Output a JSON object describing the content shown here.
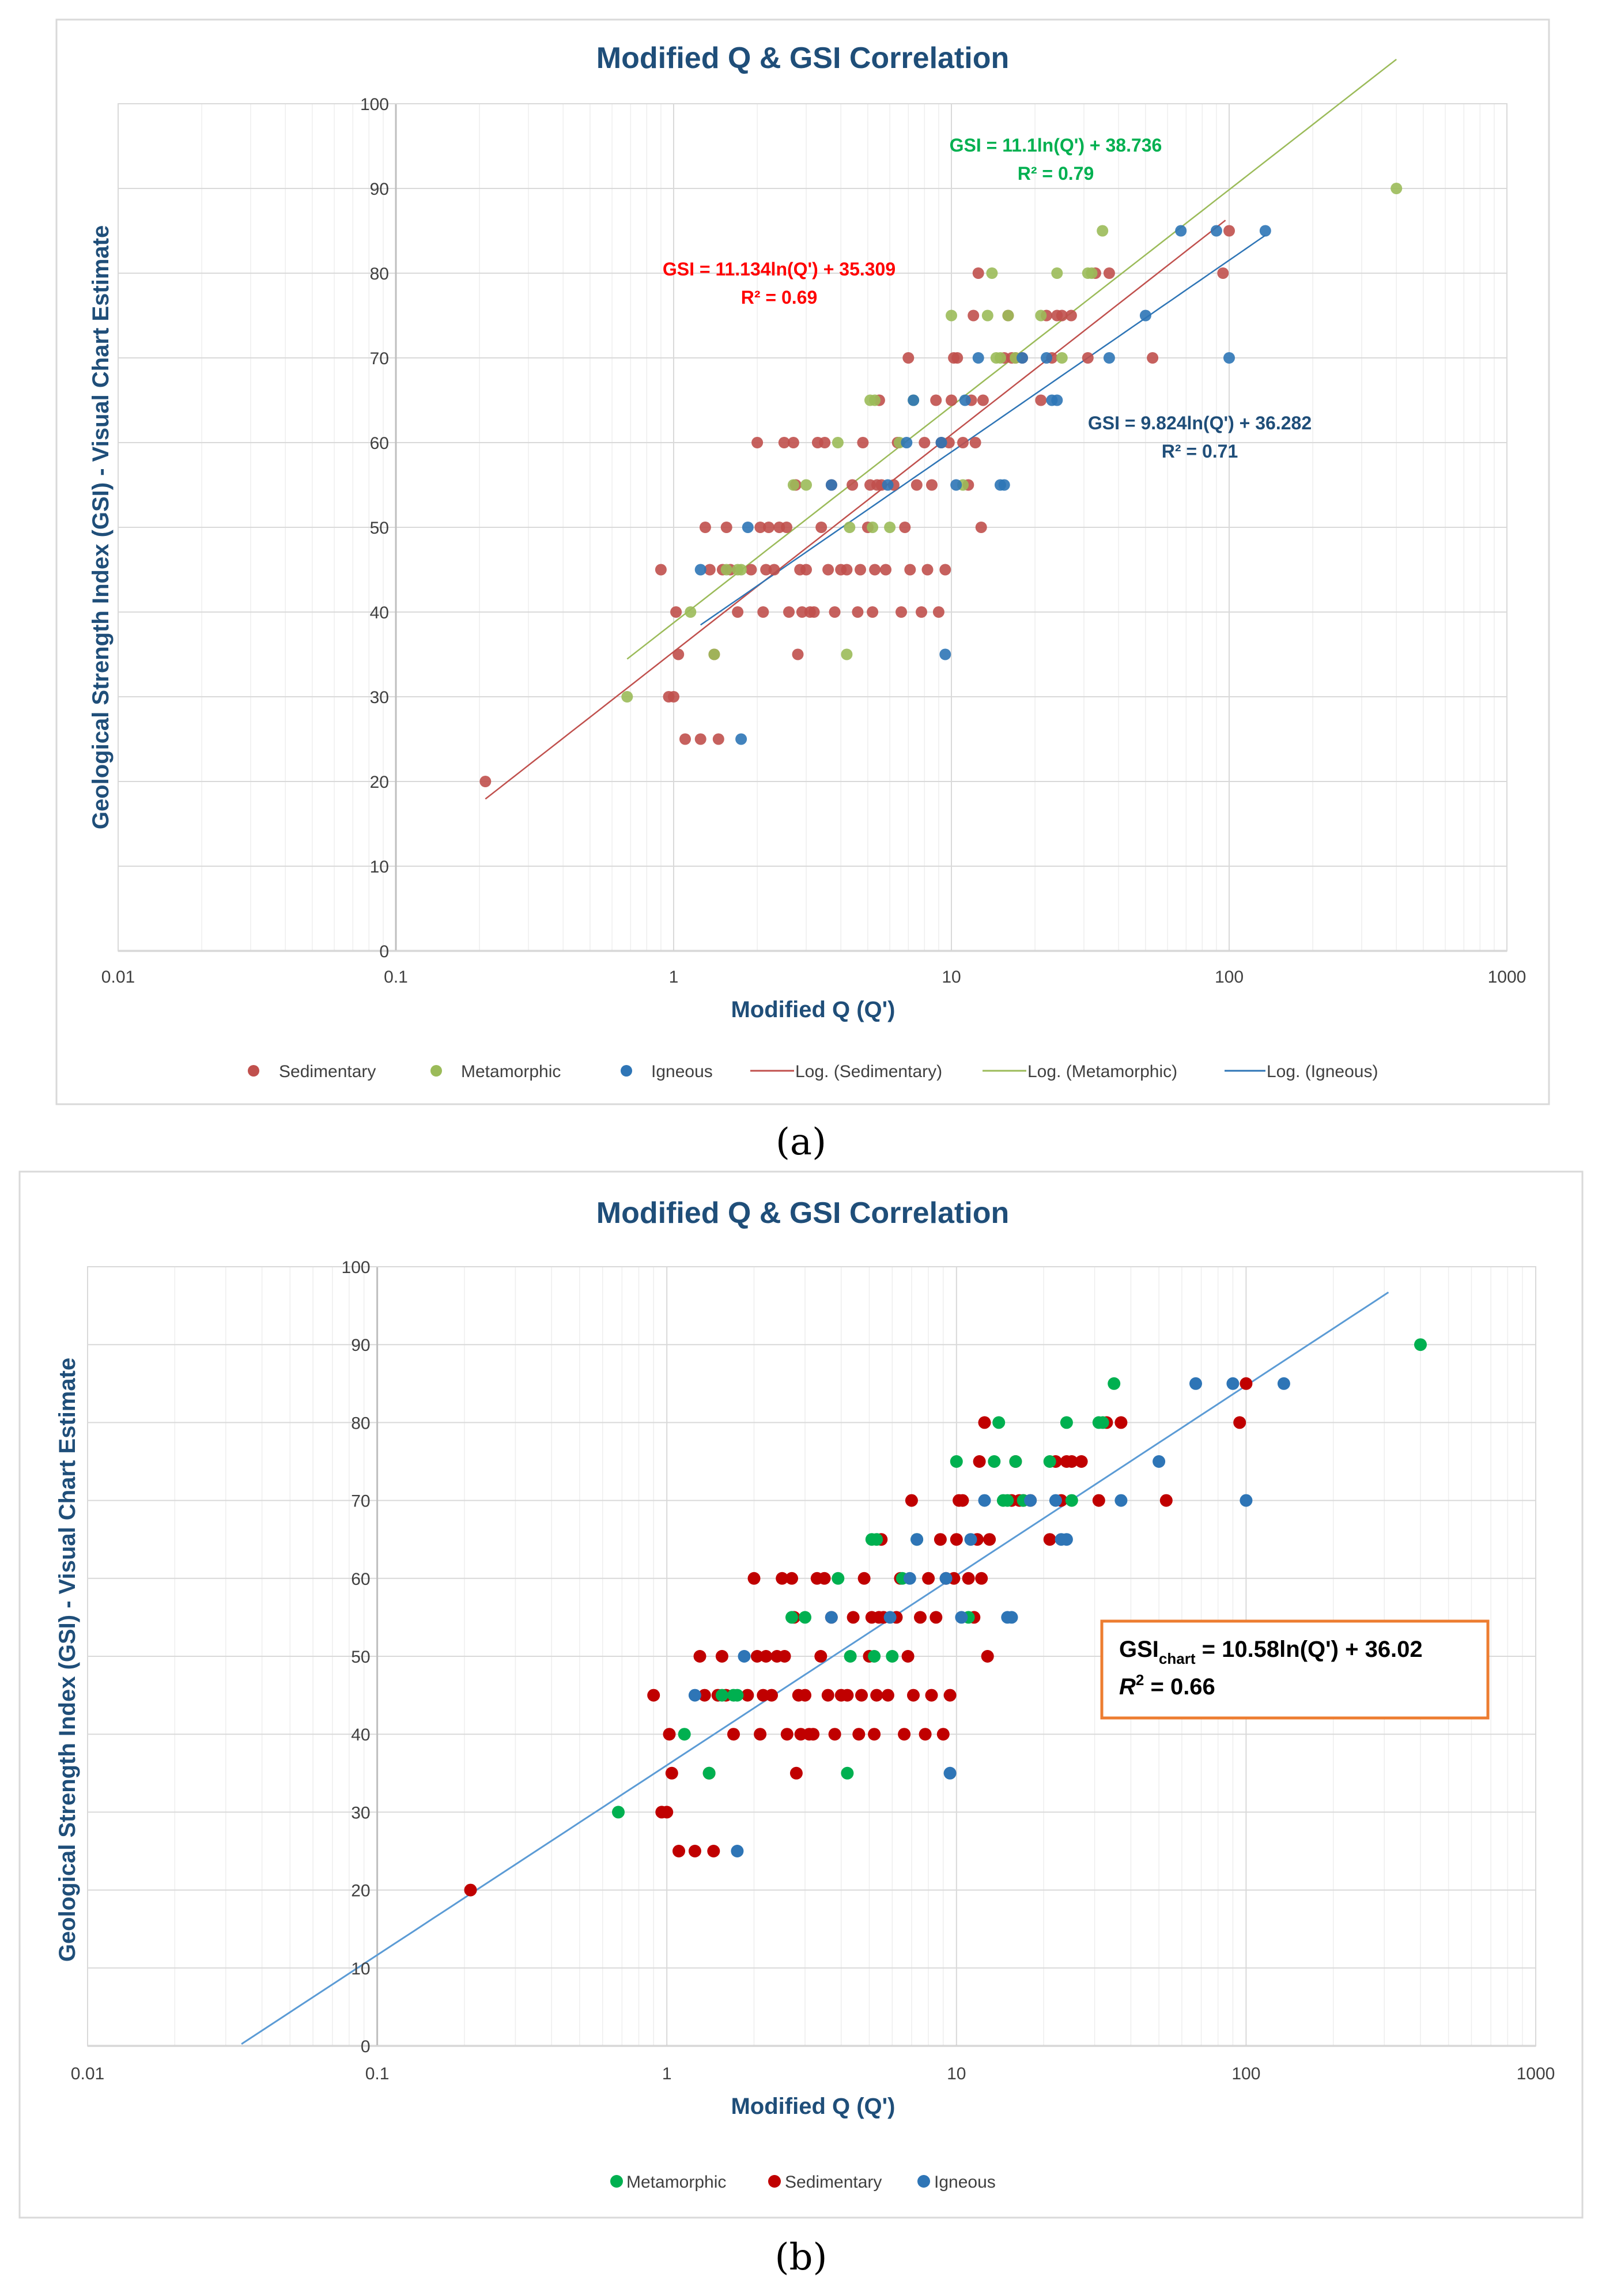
{
  "chart_data": [
    {
      "panel": "a",
      "type": "scatter",
      "title": "Modified Q & GSI Correlation",
      "xlabel": "Modified Q (Q')",
      "ylabel": "Geological Strength Index (GSI) - Visual Chart Estimate",
      "x_scale": "log",
      "xlim": [
        0.01,
        1000
      ],
      "ylim": [
        0,
        100
      ],
      "x_ticks": [
        "0.01",
        "0.1",
        "1",
        "10",
        "100",
        "1000"
      ],
      "y_ticks": [
        "0",
        "10",
        "20",
        "30",
        "40",
        "50",
        "60",
        "70",
        "80",
        "90",
        "100"
      ],
      "legend": [
        "Sedimentary",
        "Metamorphic",
        "Igneous",
        "Log. (Sedimentary)",
        "Log. (Metamorphic)",
        "Log. (Igneous)"
      ],
      "colors": {
        "Sedimentary": "#c0504d",
        "Metamorphic": "#9bbb59",
        "Igneous": "#2e75b6"
      },
      "equations": {
        "metamorphic": {
          "eq": "GSI = 11.1ln(Q') + 38.736",
          "r2": "R² = 0.79",
          "color": "#00b050"
        },
        "sedimentary": {
          "eq": "GSI = 11.134ln(Q') + 35.309",
          "r2": "R² = 0.69",
          "color": "#ff0000"
        },
        "igneous": {
          "eq": "GSI = 9.824ln(Q') + 36.282",
          "r2": "R² = 0.71",
          "color": "#1f4e79"
        }
      },
      "trendlines": [
        {
          "name": "Log. (Sedimentary)",
          "a": 11.134,
          "b": 35.309,
          "x_from": 0.21,
          "x_to": 97,
          "color": "#c0504d"
        },
        {
          "name": "Log. (Metamorphic)",
          "a": 11.1,
          "b": 38.736,
          "x_from": 0.68,
          "x_to": 400,
          "color": "#9bbb59"
        },
        {
          "name": "Log. (Igneous)",
          "a": 9.824,
          "b": 36.282,
          "x_from": 1.25,
          "x_to": 135,
          "color": "#2e75b6"
        }
      ],
      "caption": "(a)"
    },
    {
      "panel": "b",
      "type": "scatter",
      "title": "Modified Q & GSI Correlation",
      "xlabel": "Modified Q (Q')",
      "ylabel": "Geological Strength Index (GSI) - Visual Chart Estimate",
      "x_scale": "log",
      "xlim": [
        0.01,
        1000
      ],
      "ylim": [
        0,
        100
      ],
      "x_ticks": [
        "0.01",
        "0.1",
        "1",
        "10",
        "100",
        "1000"
      ],
      "y_ticks": [
        "0",
        "10",
        "20",
        "30",
        "40",
        "50",
        "60",
        "70",
        "80",
        "90",
        "100"
      ],
      "legend": [
        "Metamorphic",
        "Sedimentary",
        "Igneous"
      ],
      "colors": {
        "Sedimentary": "#c00000",
        "Metamorphic": "#00b050",
        "Igneous": "#2e75b6"
      },
      "equation_box": {
        "prefix": "GSI",
        "subscript": "chart",
        "rest": " = 10.58ln(Q') + 36.02",
        "r2_label": "R",
        "r2_sup": "2",
        "r2_rest": " = 0.66"
      },
      "trendline": {
        "a": 10.58,
        "b": 36.02,
        "x_from": 0.034,
        "x_to": 310,
        "color": "#5b9bd5"
      },
      "caption": "(b)"
    }
  ],
  "points": {
    "metamorphic": [
      [
        0.68,
        30
      ],
      [
        1.15,
        40
      ],
      [
        1.4,
        35
      ],
      [
        1.55,
        45
      ],
      [
        1.7,
        45
      ],
      [
        1.75,
        45
      ],
      [
        2.7,
        55
      ],
      [
        3.0,
        55
      ],
      [
        3.9,
        60
      ],
      [
        4.2,
        35
      ],
      [
        4.3,
        50
      ],
      [
        5.1,
        65
      ],
      [
        5.2,
        50
      ],
      [
        5.3,
        65
      ],
      [
        6.0,
        50
      ],
      [
        6.5,
        60
      ],
      [
        7.3,
        65
      ],
      [
        10.0,
        75
      ],
      [
        11.0,
        55
      ],
      [
        13.5,
        75
      ],
      [
        14.0,
        80
      ],
      [
        14.5,
        70
      ],
      [
        15.0,
        70
      ],
      [
        16.0,
        75
      ],
      [
        17.0,
        70
      ],
      [
        21.0,
        75
      ],
      [
        24.0,
        80
      ],
      [
        25.0,
        70
      ],
      [
        31.0,
        80
      ],
      [
        32.0,
        80
      ],
      [
        35.0,
        85
      ],
      [
        400,
        90
      ]
    ],
    "sedimentary": [
      [
        0.21,
        20
      ],
      [
        0.9,
        45
      ],
      [
        0.96,
        30
      ],
      [
        1.0,
        30
      ],
      [
        1.02,
        40
      ],
      [
        1.04,
        35
      ],
      [
        1.1,
        25
      ],
      [
        1.25,
        25
      ],
      [
        1.3,
        50
      ],
      [
        1.35,
        45
      ],
      [
        1.4,
        35
      ],
      [
        1.45,
        25
      ],
      [
        1.5,
        45
      ],
      [
        1.55,
        50
      ],
      [
        1.6,
        45
      ],
      [
        1.7,
        40
      ],
      [
        1.9,
        45
      ],
      [
        2.0,
        60
      ],
      [
        2.05,
        50
      ],
      [
        2.1,
        40
      ],
      [
        2.15,
        45
      ],
      [
        2.2,
        50
      ],
      [
        2.3,
        45
      ],
      [
        2.4,
        50
      ],
      [
        2.5,
        60
      ],
      [
        2.55,
        50
      ],
      [
        2.6,
        40
      ],
      [
        2.7,
        60
      ],
      [
        2.75,
        55
      ],
      [
        2.8,
        35
      ],
      [
        2.85,
        45
      ],
      [
        2.9,
        40
      ],
      [
        3.0,
        45
      ],
      [
        3.1,
        40
      ],
      [
        3.2,
        40
      ],
      [
        3.3,
        60
      ],
      [
        3.4,
        50
      ],
      [
        3.5,
        60
      ],
      [
        3.6,
        45
      ],
      [
        3.7,
        55
      ],
      [
        3.8,
        40
      ],
      [
        4.0,
        45
      ],
      [
        4.2,
        45
      ],
      [
        4.4,
        55
      ],
      [
        4.6,
        40
      ],
      [
        4.7,
        45
      ],
      [
        4.8,
        60
      ],
      [
        5.0,
        50
      ],
      [
        5.1,
        55
      ],
      [
        5.2,
        40
      ],
      [
        5.3,
        45
      ],
      [
        5.4,
        55
      ],
      [
        5.5,
        65
      ],
      [
        5.6,
        55
      ],
      [
        5.8,
        45
      ],
      [
        6.2,
        55
      ],
      [
        6.4,
        60
      ],
      [
        6.6,
        40
      ],
      [
        6.8,
        50
      ],
      [
        7.0,
        70
      ],
      [
        7.1,
        45
      ],
      [
        7.5,
        55
      ],
      [
        7.8,
        40
      ],
      [
        8.0,
        60
      ],
      [
        8.2,
        45
      ],
      [
        8.5,
        55
      ],
      [
        8.8,
        65
      ],
      [
        9.0,
        40
      ],
      [
        9.2,
        60
      ],
      [
        9.5,
        45
      ],
      [
        9.8,
        60
      ],
      [
        10.0,
        65
      ],
      [
        10.2,
        70
      ],
      [
        10.5,
        70
      ],
      [
        11.0,
        60
      ],
      [
        11.5,
        55
      ],
      [
        11.8,
        65
      ],
      [
        12.0,
        75
      ],
      [
        12.2,
        60
      ],
      [
        12.5,
        80
      ],
      [
        12.8,
        50
      ],
      [
        13.0,
        65
      ],
      [
        15.5,
        70
      ],
      [
        16.0,
        75
      ],
      [
        16.5,
        70
      ],
      [
        17.0,
        70
      ],
      [
        18.0,
        70
      ],
      [
        21.0,
        65
      ],
      [
        22.0,
        75
      ],
      [
        23.0,
        70
      ],
      [
        24.0,
        75
      ],
      [
        25.0,
        75
      ],
      [
        27.0,
        75
      ],
      [
        31.0,
        70
      ],
      [
        33.0,
        80
      ],
      [
        37.0,
        80
      ],
      [
        53.0,
        70
      ],
      [
        95.0,
        80
      ],
      [
        100.0,
        85
      ]
    ],
    "igneous": [
      [
        1.25,
        45
      ],
      [
        1.75,
        25
      ],
      [
        1.85,
        50
      ],
      [
        3.7,
        55
      ],
      [
        5.9,
        55
      ],
      [
        6.9,
        60
      ],
      [
        7.3,
        65
      ],
      [
        9.2,
        60
      ],
      [
        9.5,
        35
      ],
      [
        10.4,
        55
      ],
      [
        11.2,
        65
      ],
      [
        12.5,
        70
      ],
      [
        15.0,
        55
      ],
      [
        15.5,
        55
      ],
      [
        18.0,
        70
      ],
      [
        22.0,
        70
      ],
      [
        23.0,
        65
      ],
      [
        24.0,
        65
      ],
      [
        37.0,
        70
      ],
      [
        50.0,
        75
      ],
      [
        67.0,
        85
      ],
      [
        90.0,
        85
      ],
      [
        100.0,
        70
      ],
      [
        135.0,
        85
      ]
    ]
  }
}
